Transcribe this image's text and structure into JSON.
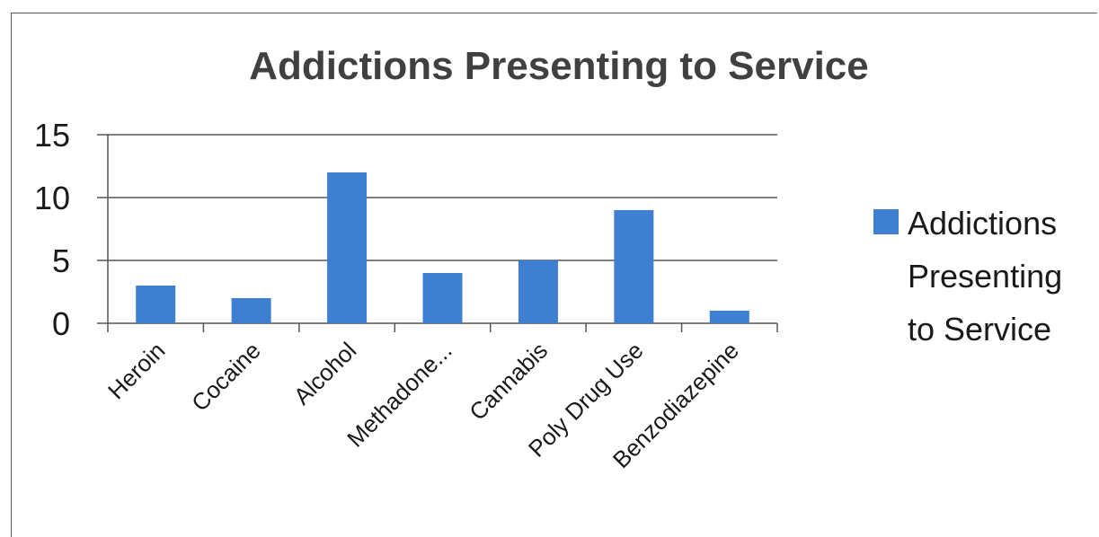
{
  "chart_data": {
    "type": "bar",
    "title": "Addictions Presenting to Service",
    "xlabel": "",
    "ylabel": "",
    "categories": [
      "Heroin",
      "Cocaine",
      "Alcohol",
      "Methadone...",
      "Cannabis",
      "Poly Drug Use",
      "Benzodiazepine"
    ],
    "series": [
      {
        "name": "Addictions Presenting to Service",
        "values": [
          3,
          2,
          12,
          4,
          5,
          9,
          1
        ],
        "color": "#3f7fd1"
      }
    ],
    "ylim": [
      0,
      15
    ],
    "yticks": [
      "0",
      "5",
      "10",
      "15"
    ],
    "grid": true,
    "legend": {
      "position": "right",
      "lines": [
        "Addictions",
        "Presenting",
        "to Service"
      ]
    }
  }
}
